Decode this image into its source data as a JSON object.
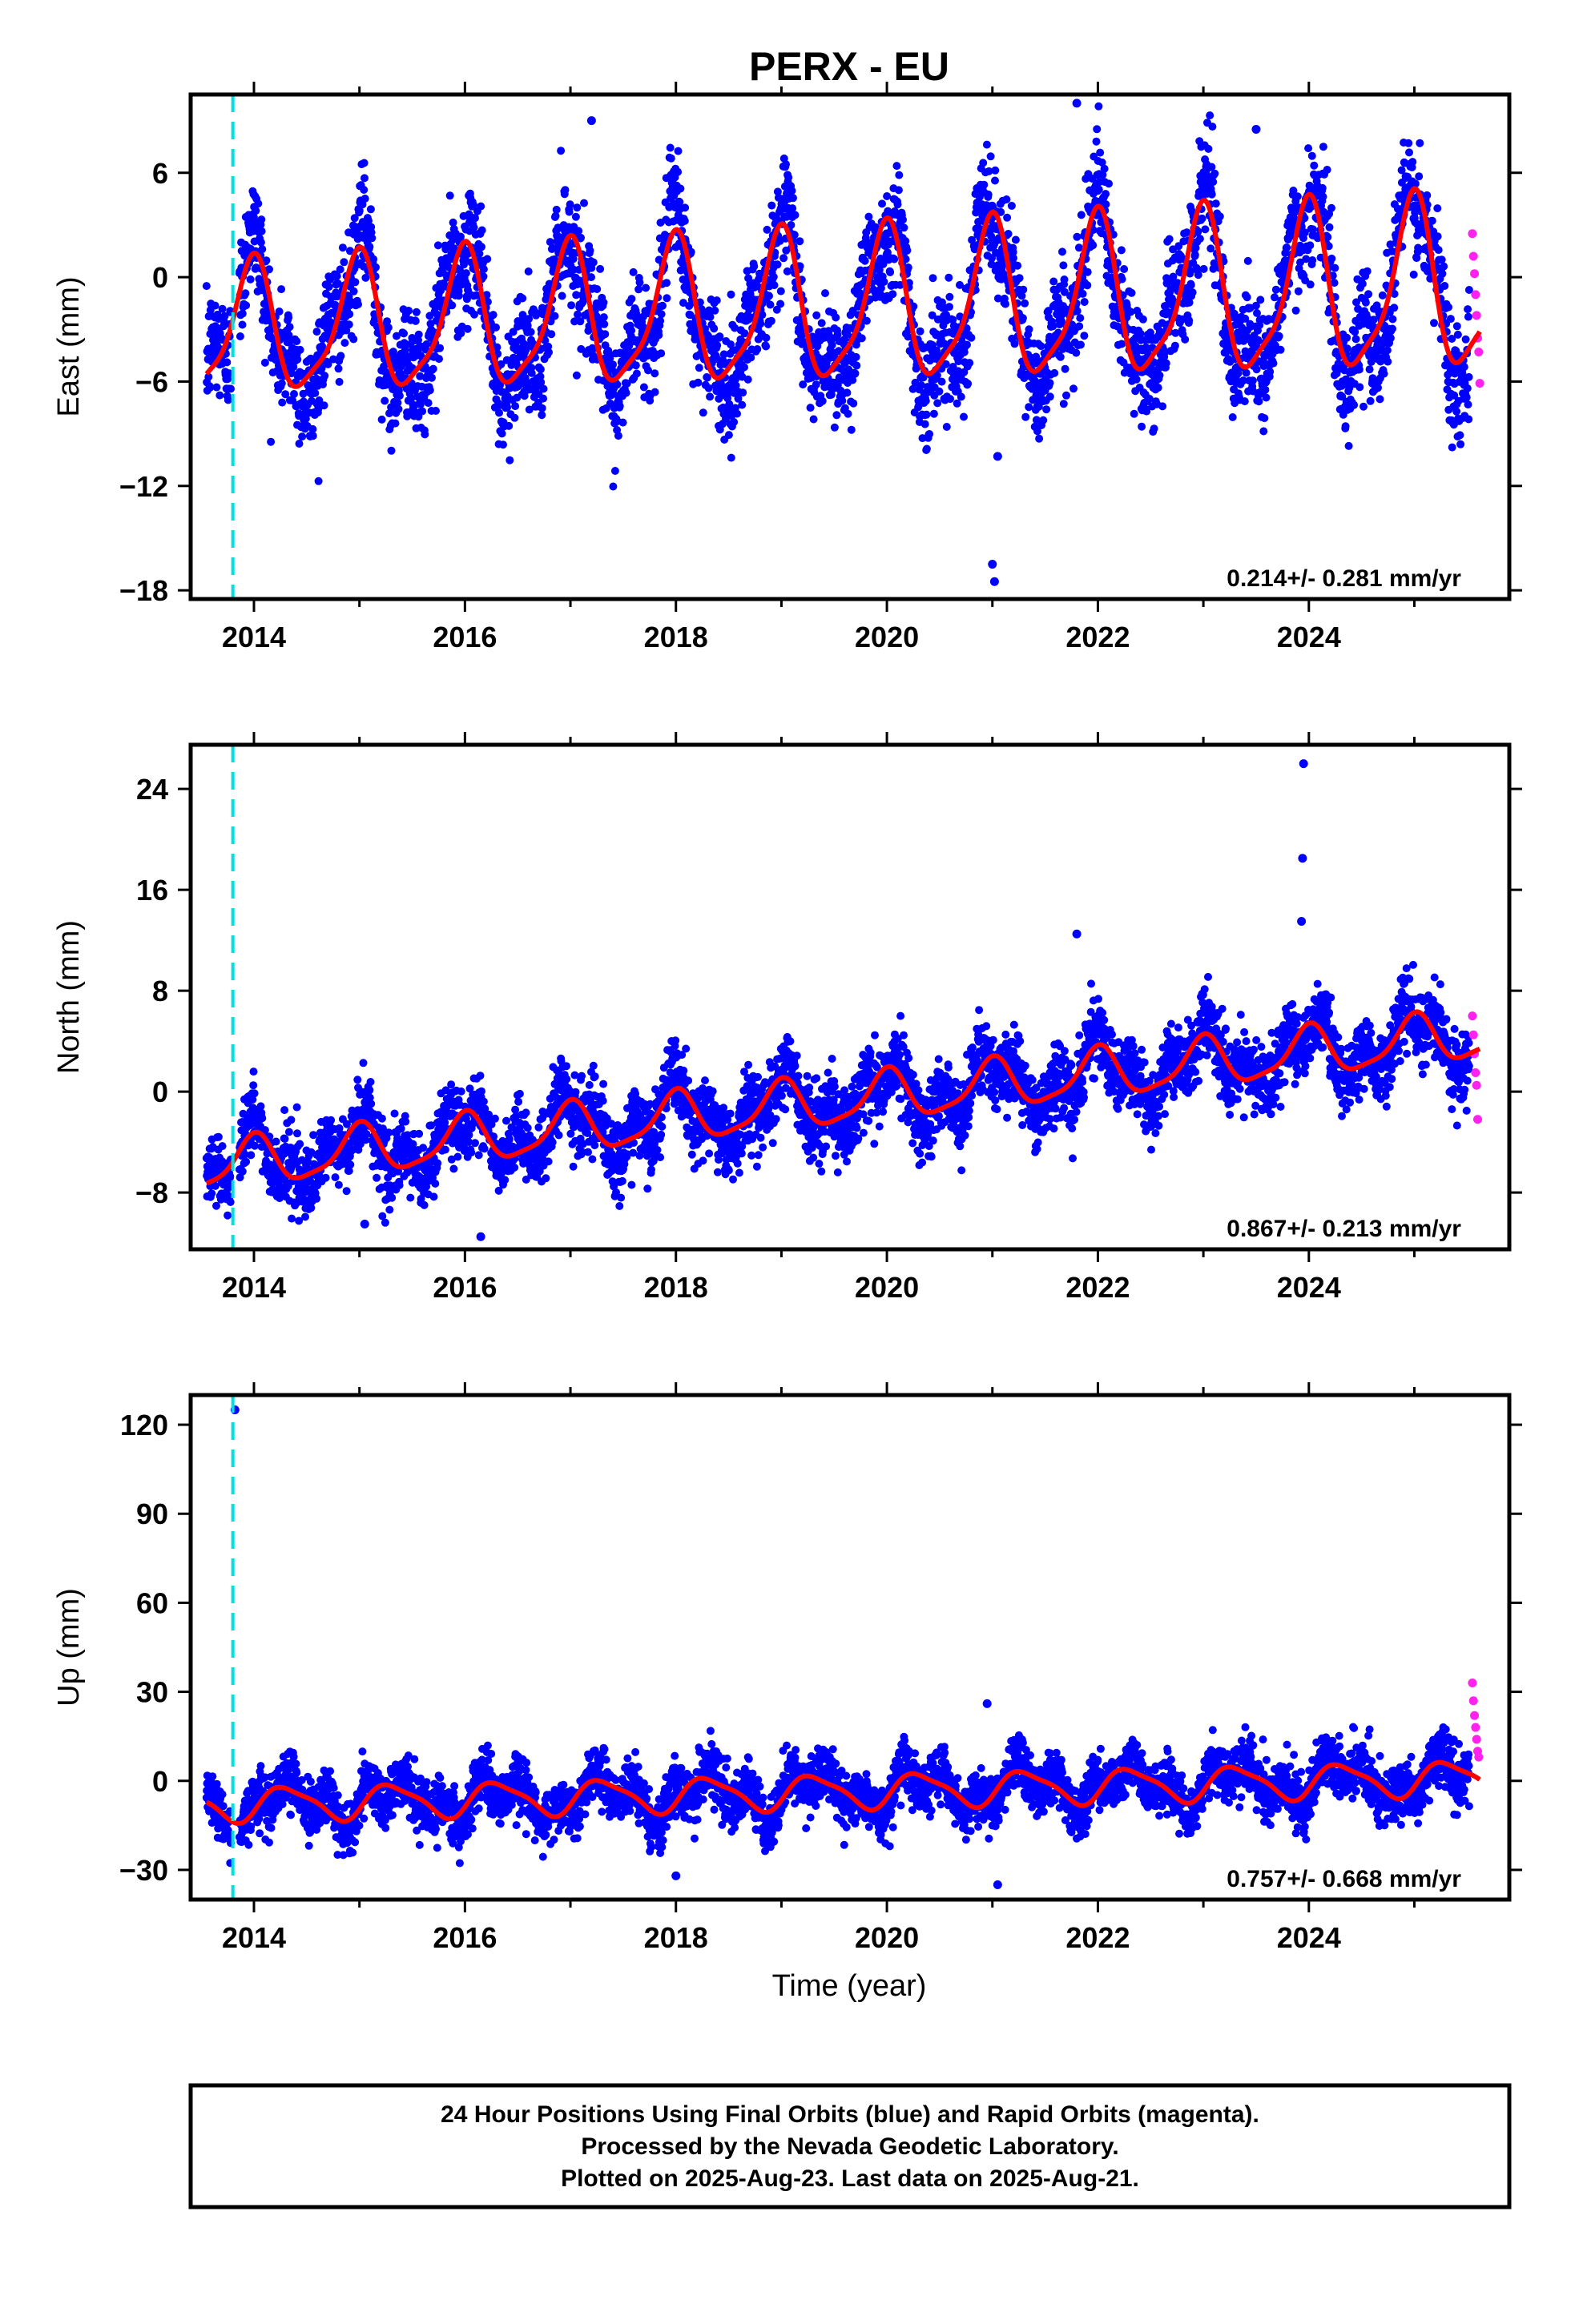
{
  "chart_data": [
    {
      "type": "scatter",
      "title": "PERX - EU",
      "ylabel": "East (mm)",
      "xlim": [
        2013.4,
        2025.9
      ],
      "ylim": [
        -18.5,
        10.5
      ],
      "yticks": [
        -18,
        -12,
        -6,
        0,
        6
      ],
      "xticks": [
        2014,
        2016,
        2018,
        2020,
        2022,
        2024
      ],
      "event_line_x": 2013.8,
      "rate_text": "0.214+/- 0.281 mm/yr",
      "rate": 0.214,
      "offset": -1.9,
      "annual_amp": 3.6,
      "amp_growth": 0.1,
      "phase": 1.7,
      "noise": 1.6,
      "outliers": [
        {
          "x": 2021.0,
          "y": -16.5
        },
        {
          "x": 2021.02,
          "y": -17.5
        },
        {
          "x": 2021.05,
          "y": -10.3
        },
        {
          "x": 2017.2,
          "y": 9.0
        },
        {
          "x": 2021.8,
          "y": 10.0
        },
        {
          "x": 2023.5,
          "y": 8.5
        }
      ],
      "rapid_points": [
        {
          "x": 2025.55,
          "y": 2.5
        },
        {
          "x": 2025.56,
          "y": 1.2
        },
        {
          "x": 2025.57,
          "y": 0.2
        },
        {
          "x": 2025.58,
          "y": -1.0
        },
        {
          "x": 2025.59,
          "y": -2.2
        },
        {
          "x": 2025.6,
          "y": -3.5
        },
        {
          "x": 2025.61,
          "y": -4.3
        },
        {
          "x": 2025.62,
          "y": -6.1
        }
      ]
    },
    {
      "type": "scatter",
      "ylabel": "North (mm)",
      "xlim": [
        2013.4,
        2025.9
      ],
      "ylim": [
        -12.5,
        27.5
      ],
      "yticks": [
        -8,
        0,
        8,
        16,
        24
      ],
      "xticks": [
        2014,
        2016,
        2018,
        2020,
        2022,
        2024
      ],
      "event_line_x": 2013.8,
      "rate_text": "0.867+/- 0.213 mm/yr",
      "rate": 0.867,
      "offset": -0.8,
      "annual_amp": 1.9,
      "amp_growth": 0.0,
      "phase": 1.6,
      "noise": 1.4,
      "outliers": [
        {
          "x": 2023.95,
          "y": 26.0
        },
        {
          "x": 2023.94,
          "y": 18.5
        },
        {
          "x": 2023.93,
          "y": 13.5
        },
        {
          "x": 2021.8,
          "y": 12.5
        },
        {
          "x": 2016.15,
          "y": -11.5
        },
        {
          "x": 2015.05,
          "y": -10.5
        }
      ],
      "rapid_points": [
        {
          "x": 2025.55,
          "y": 6.0
        },
        {
          "x": 2025.56,
          "y": 4.5
        },
        {
          "x": 2025.57,
          "y": 3.0
        },
        {
          "x": 2025.58,
          "y": 1.5
        },
        {
          "x": 2025.59,
          "y": 0.5
        },
        {
          "x": 2025.6,
          "y": -2.2
        }
      ]
    },
    {
      "type": "scatter",
      "ylabel": "Up (mm)",
      "xlim": [
        2013.4,
        2025.9
      ],
      "ylim": [
        -40,
        130
      ],
      "yticks": [
        -30,
        0,
        30,
        60,
        90,
        120
      ],
      "xticks": [
        2014,
        2016,
        2018,
        2020,
        2022,
        2024
      ],
      "xlabel": "Time (year)",
      "event_line_x": 2013.8,
      "rate_text": "0.757+/- 0.668 mm/yr",
      "rate": 0.757,
      "offset": -3.6,
      "annual_amp": 5.5,
      "amp_growth": 0.0,
      "phase": -0.4,
      "noise": 4.5,
      "outliers": [
        {
          "x": 2013.82,
          "y": 125.0
        },
        {
          "x": 2021.05,
          "y": -35.0
        },
        {
          "x": 2020.95,
          "y": 26.0
        },
        {
          "x": 2018.0,
          "y": -32.0
        }
      ],
      "rapid_points": [
        {
          "x": 2025.55,
          "y": 33.0
        },
        {
          "x": 2025.56,
          "y": 27.0
        },
        {
          "x": 2025.57,
          "y": 22.0
        },
        {
          "x": 2025.58,
          "y": 18.0
        },
        {
          "x": 2025.59,
          "y": 14.0
        },
        {
          "x": 2025.6,
          "y": 10.0
        },
        {
          "x": 2025.61,
          "y": 8.0
        }
      ]
    }
  ],
  "colors": {
    "final_orbits": "#0000ff",
    "rapid_orbits": "#ff22ee",
    "model_fit": "#ff0000",
    "event_line": "#00e0e0"
  },
  "footer": {
    "line1": "24 Hour Positions Using Final Orbits (blue) and Rapid Orbits (magenta).",
    "line2": "Processed by the Nevada Geodetic Laboratory.",
    "line3": "Plotted on 2025-Aug-23. Last data on 2025-Aug-21."
  }
}
